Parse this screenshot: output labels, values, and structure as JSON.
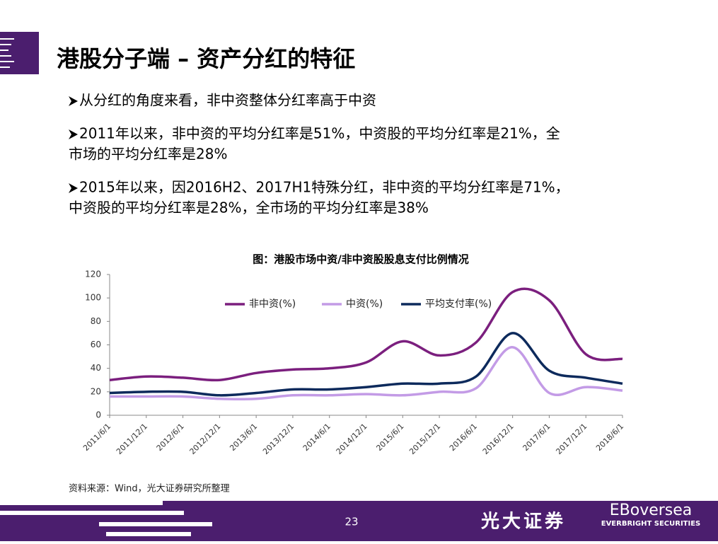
{
  "slide": {
    "title": "港股分子端 – 资产分红的特征",
    "bullets": [
      [
        "从分红的角度来看，非中资整体分红率高于中资"
      ],
      [
        "2011年以来，非中资的平均分红率是51%，中资股的平均分红率是21%，全",
        "市场的平均分红率是28%"
      ],
      [
        "2015年以来，因2016H2、2017H1特殊分红，非中资的平均分红率是71%，",
        "中资股的平均分红率是28%，全市场的平均分红率是38%"
      ]
    ],
    "source": "资料来源：Wind，光大证券研究所整理",
    "page_number": "23",
    "brand": "光大证券",
    "brand_en": "EBoversea",
    "brand_sub": "EVERBRIGHT SECURITIES"
  },
  "chart_data": {
    "type": "line",
    "title": "图：港股市场中资/非中资股股息支付比例情况",
    "categories": [
      "2011/6/1",
      "2011/12/1",
      "2012/6/1",
      "2012/12/1",
      "2013/6/1",
      "2013/12/1",
      "2014/6/1",
      "2014/12/1",
      "2015/6/1",
      "2015/12/1",
      "2016/6/1",
      "2016/12/1",
      "2017/6/1",
      "2017/12/1",
      "2018/6/1"
    ],
    "series": [
      {
        "name": "非中资(%)",
        "color": "#7b1f7e",
        "values": [
          30,
          33,
          32,
          30,
          36,
          39,
          40,
          45,
          63,
          51,
          62,
          105,
          98,
          52,
          48
        ]
      },
      {
        "name": "中资(%)",
        "color": "#c39be6",
        "values": [
          16,
          16,
          16,
          14,
          14,
          17,
          17,
          18,
          17,
          20,
          23,
          58,
          19,
          24,
          21
        ]
      },
      {
        "name": "平均支付率(%)",
        "color": "#0d2a5c",
        "values": [
          19,
          20,
          20,
          17,
          19,
          22,
          22,
          24,
          27,
          27,
          33,
          70,
          38,
          32,
          27
        ]
      }
    ],
    "ylim": [
      0,
      120
    ],
    "yticks": [
      0,
      20,
      40,
      60,
      80,
      100,
      120
    ],
    "grid": false,
    "legend": "top"
  }
}
